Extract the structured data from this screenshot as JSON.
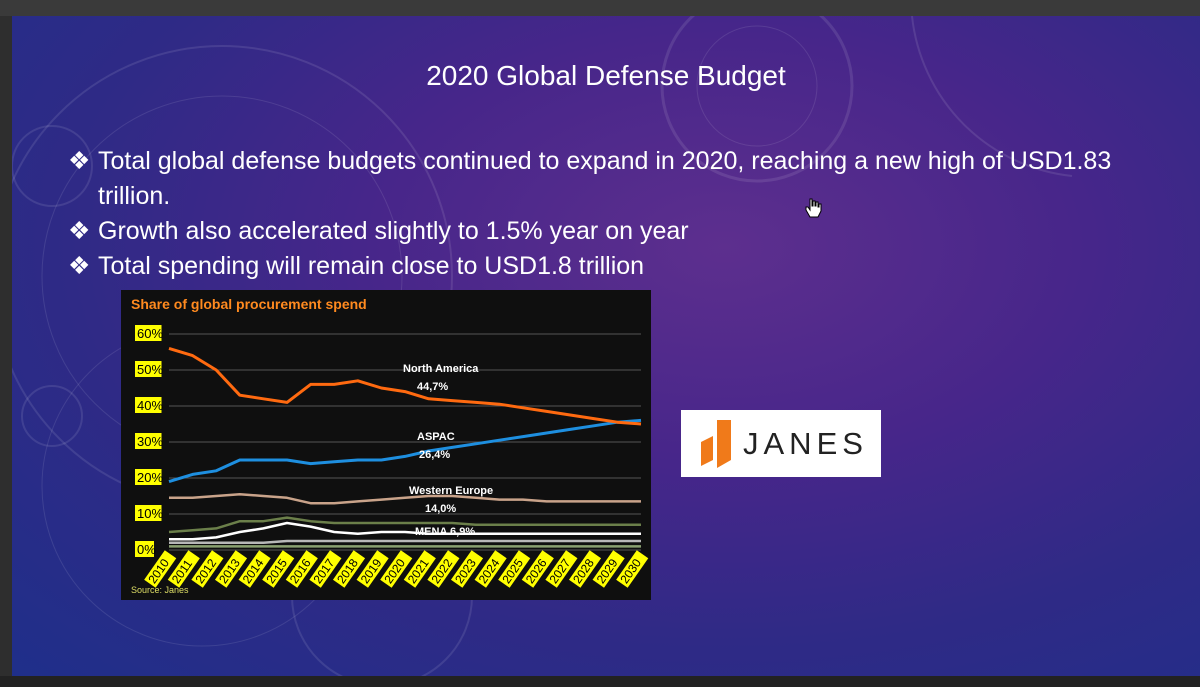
{
  "slide": {
    "title": "2020 Global Defense Budget",
    "bullet_marker": "❖",
    "bullets": [
      "Total global defense budgets continued to expand in 2020, reaching a new high of USD1.83 trillion.",
      "Growth also accelerated slightly to 1.5% year on year",
      "Total spending will remain close to USD1.8 trillion"
    ]
  },
  "logo": {
    "text": "JANES"
  },
  "colors": {
    "north_america": "#ff6a10",
    "aspac": "#1e8fe0",
    "western_europe": "#c9a38a",
    "mena": "#6b7f4a",
    "other1": "#ffffff",
    "other2": "#b8b8b8",
    "other3": "#8aa070",
    "title_orange": "#ff8a1f",
    "tick_bg": "#ffff00"
  },
  "chart_data": {
    "type": "line",
    "title": "Share of global procurement spend",
    "source": "Source: Janes",
    "x": [
      2010,
      2011,
      2012,
      2013,
      2014,
      2015,
      2016,
      2017,
      2018,
      2019,
      2020,
      2021,
      2022,
      2023,
      2024,
      2025,
      2026,
      2027,
      2028,
      2029,
      2030
    ],
    "x_tick_labels": [
      "2010",
      "2011",
      "2012",
      "2013",
      "2014",
      "2015",
      "2016",
      "2017",
      "2018",
      "2019",
      "2020",
      "2021",
      "2022",
      "2023",
      "2024",
      "2025",
      "2026",
      "2027",
      "2028",
      "2029",
      "2030"
    ],
    "y_tick_labels": [
      "0%",
      "10%",
      "20%",
      "30%",
      "40%",
      "50%",
      "60%"
    ],
    "ylim": [
      0,
      60
    ],
    "grid": true,
    "series": [
      {
        "name": "North America",
        "label": "44,7%",
        "color_key": "north_america",
        "values": [
          56,
          54,
          50,
          43,
          42,
          41,
          46,
          46,
          47,
          45,
          44,
          42,
          41.5,
          41,
          40.5,
          39.5,
          38.5,
          37.5,
          36.5,
          35.5,
          35
        ]
      },
      {
        "name": "ASPAC",
        "label": "26,4%",
        "color_key": "aspac",
        "values": [
          19,
          21,
          22,
          25,
          25,
          25,
          24,
          24.5,
          25,
          25,
          26,
          27.5,
          28.5,
          29.5,
          30.5,
          31.5,
          32.5,
          33.5,
          34.5,
          35.5,
          36
        ]
      },
      {
        "name": "Western Europe",
        "label": "14,0%",
        "color_key": "western_europe",
        "values": [
          14.5,
          14.5,
          15,
          15.5,
          15,
          14.5,
          13,
          13,
          13.5,
          14,
          14.5,
          15,
          15,
          14.5,
          14,
          14,
          13.5,
          13.5,
          13.5,
          13.5,
          13.5
        ]
      },
      {
        "name": "MENA",
        "label": "6,9%",
        "color_key": "mena",
        "values": [
          5,
          5.5,
          6,
          8,
          8,
          9,
          8,
          7.5,
          7.5,
          7.5,
          7.5,
          7.5,
          7.5,
          7,
          7,
          7,
          7,
          7,
          7,
          7,
          7
        ]
      },
      {
        "name": "",
        "label": "",
        "color_key": "other1",
        "values": [
          3,
          3,
          3.5,
          5,
          6,
          7.5,
          6.5,
          5,
          4.5,
          5,
          5,
          4.5,
          4.5,
          4.5,
          4.5,
          4.5,
          4.5,
          4.5,
          4.5,
          4.5,
          4.5
        ]
      },
      {
        "name": "",
        "label": "",
        "color_key": "other2",
        "values": [
          2,
          2,
          2,
          2,
          2,
          2.5,
          2.5,
          2.5,
          2.5,
          2.5,
          2.5,
          2.5,
          2.5,
          2.5,
          2.5,
          2.5,
          2.5,
          2.5,
          2.5,
          2.5,
          2.5
        ]
      },
      {
        "name": "",
        "label": "",
        "color_key": "other3",
        "values": [
          1,
          1,
          1,
          1,
          1,
          1,
          1,
          1,
          1,
          1,
          1,
          1,
          1,
          1,
          1,
          1,
          1,
          1,
          1,
          1,
          1
        ]
      }
    ],
    "annotations": [
      {
        "text": "North America",
        "series": 0,
        "line": 1
      },
      {
        "text": "44,7%",
        "series": 0,
        "line": 2
      },
      {
        "text": "ASPAC",
        "series": 1,
        "line": 1
      },
      {
        "text": "26,4%",
        "series": 1,
        "line": 2
      },
      {
        "text": "Western Europe",
        "series": 2,
        "line": 1
      },
      {
        "text": "14,0%",
        "series": 2,
        "line": 2
      },
      {
        "text": "MENA 6,9%",
        "series": 3,
        "line": 1
      }
    ]
  }
}
